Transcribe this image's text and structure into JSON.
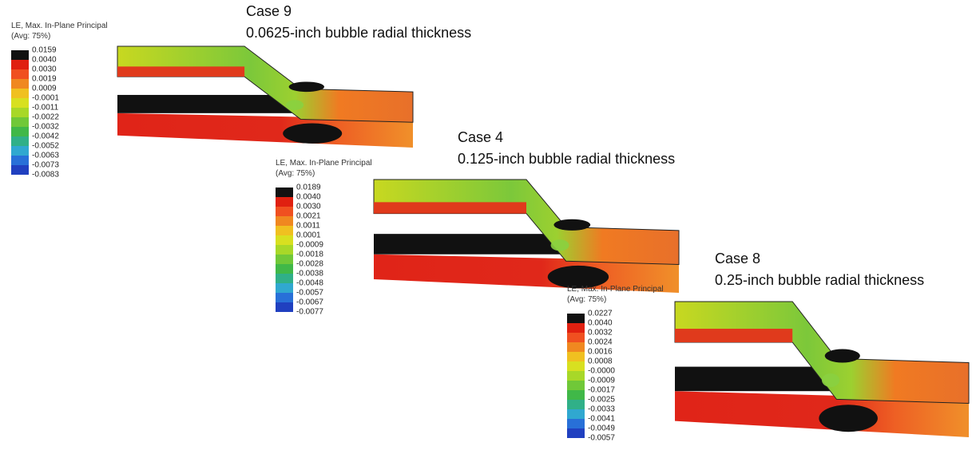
{
  "panels": [
    {
      "title": "Case 9",
      "subtitle": "0.0625-inch bubble radial thickness",
      "legend": {
        "title": "LE, Max. In-Plane Principal",
        "subtitle": "(Avg: 75%)",
        "labels": [
          "0.0159",
          "0.0040",
          "0.0030",
          "0.0019",
          "0.0009",
          "-0.0001",
          "-0.0011",
          "-0.0022",
          "-0.0032",
          "-0.0042",
          "-0.0052",
          "-0.0063",
          "-0.0073",
          "-0.0083"
        ]
      }
    },
    {
      "title": "Case 4",
      "subtitle": "0.125-inch bubble radial thickness",
      "legend": {
        "title": "LE, Max. In-Plane Principal",
        "subtitle": "(Avg: 75%)",
        "labels": [
          "0.0189",
          "0.0040",
          "0.0030",
          "0.0021",
          "0.0011",
          "0.0001",
          "-0.0009",
          "-0.0018",
          "-0.0028",
          "-0.0038",
          "-0.0048",
          "-0.0057",
          "-0.0067",
          "-0.0077"
        ]
      }
    },
    {
      "title": "Case 8",
      "subtitle": "0.25-inch bubble radial thickness",
      "legend": {
        "title": "LE, Max. In-Plane Principal",
        "subtitle": "(Avg: 75%)",
        "labels": [
          "0.0227",
          "0.0040",
          "0.0032",
          "0.0024",
          "0.0016",
          "0.0008",
          "-0.0000",
          "-0.0009",
          "-0.0017",
          "-0.0025",
          "-0.0033",
          "-0.0041",
          "-0.0049",
          "-0.0057"
        ]
      }
    }
  ]
}
